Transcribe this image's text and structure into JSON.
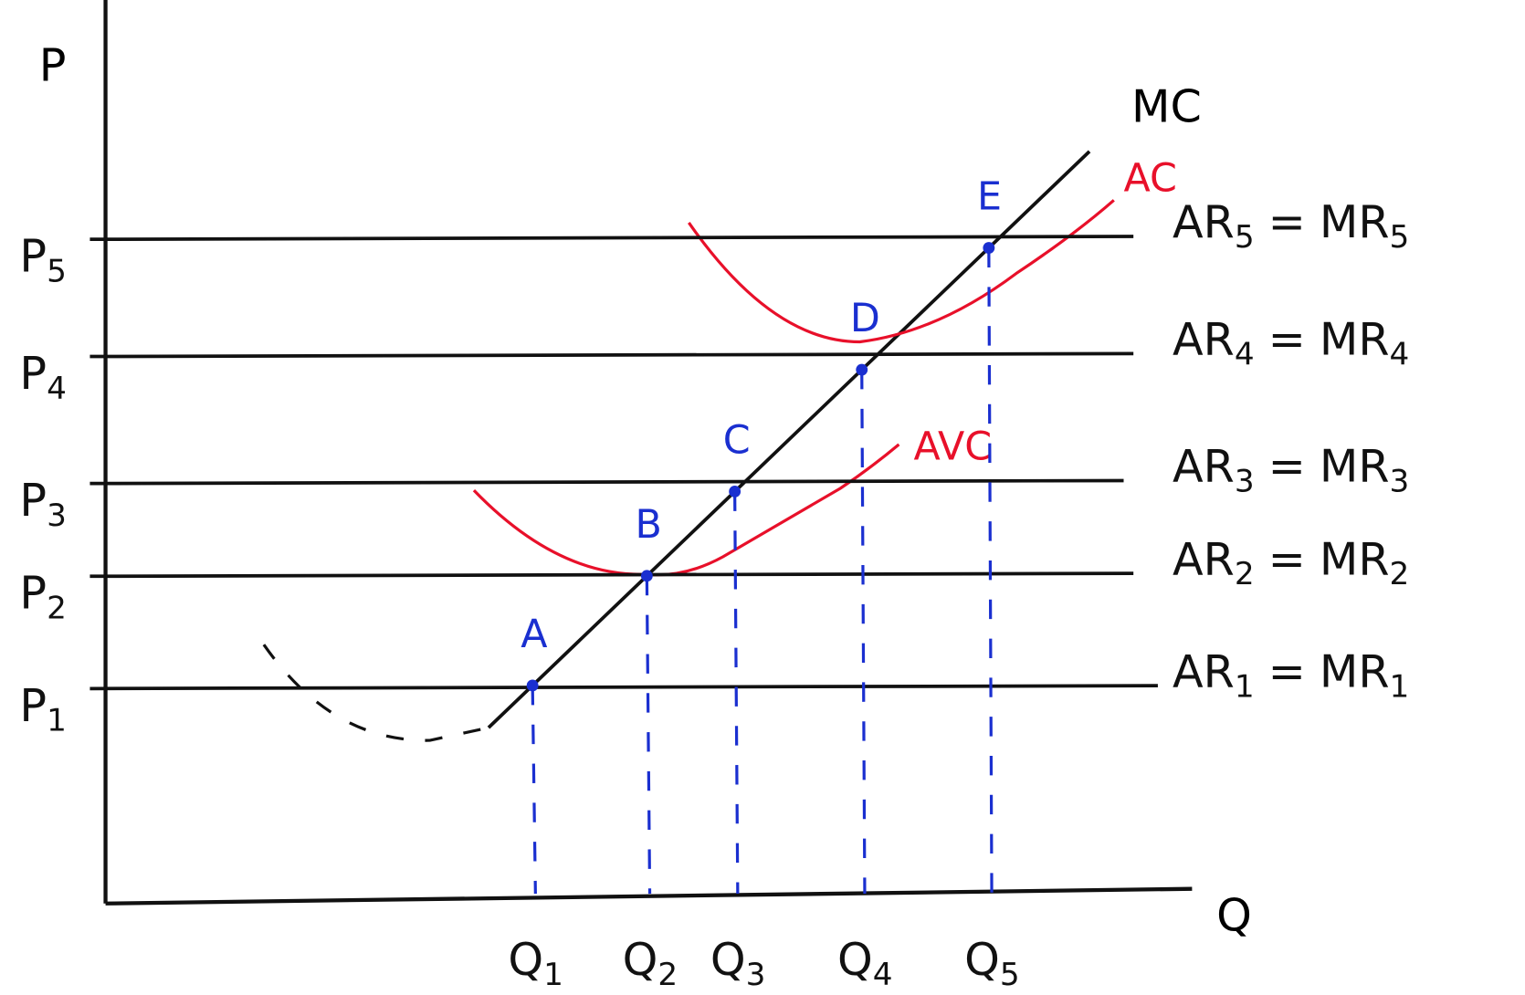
{
  "axes": {
    "y_label": "P",
    "x_label": "Q"
  },
  "curves": {
    "mc": "MC",
    "ac": "AC",
    "avc": "AVC"
  },
  "equals": "=",
  "levels": [
    {
      "price": {
        "base": "P",
        "sub": "1"
      },
      "revenue": {
        "base": "AR",
        "sub": "1"
      },
      "marginal": {
        "base": "MR",
        "sub": "1"
      },
      "point": "A",
      "quantity": {
        "base": "Q",
        "sub": "1"
      }
    },
    {
      "price": {
        "base": "P",
        "sub": "2"
      },
      "revenue": {
        "base": "AR",
        "sub": "2"
      },
      "marginal": {
        "base": "MR",
        "sub": "2"
      },
      "point": "B",
      "quantity": {
        "base": "Q",
        "sub": "2"
      }
    },
    {
      "price": {
        "base": "P",
        "sub": "3"
      },
      "revenue": {
        "base": "AR",
        "sub": "3"
      },
      "marginal": {
        "base": "MR",
        "sub": "3"
      },
      "point": "C",
      "quantity": {
        "base": "Q",
        "sub": "3"
      }
    },
    {
      "price": {
        "base": "P",
        "sub": "4"
      },
      "revenue": {
        "base": "AR",
        "sub": "4"
      },
      "marginal": {
        "base": "MR",
        "sub": "4"
      },
      "point": "D",
      "quantity": {
        "base": "Q",
        "sub": "4"
      }
    },
    {
      "price": {
        "base": "P",
        "sub": "5"
      },
      "revenue": {
        "base": "AR",
        "sub": "5"
      },
      "marginal": {
        "base": "MR",
        "sub": "5"
      },
      "point": "E",
      "quantity": {
        "base": "Q",
        "sub": "5"
      }
    }
  ]
}
